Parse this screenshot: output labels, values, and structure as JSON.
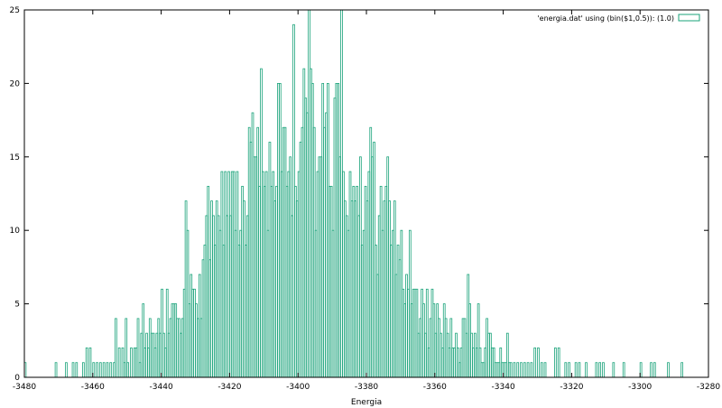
{
  "chart_data": {
    "type": "bar",
    "title": "",
    "xlabel": "Energia",
    "ylabel": "",
    "xlim": [
      -3480,
      -3280
    ],
    "ylim": [
      0,
      25
    ],
    "bin_width": 0.5,
    "grid": false,
    "legend_position": "top-right",
    "color": "#1aa37a",
    "x_ticks": [
      -3480,
      -3460,
      -3440,
      -3420,
      -3400,
      -3380,
      -3360,
      -3340,
      -3320,
      -3300,
      -3280
    ],
    "y_ticks": [
      0,
      5,
      10,
      15,
      20,
      25
    ],
    "series": [
      {
        "name": "'energia.dat' using (bin($1,0.5)): (1.0)",
        "bins": [
          [
            -3480,
            1
          ],
          [
            -3471,
            1
          ],
          [
            -3468,
            1
          ],
          [
            -3466,
            1
          ],
          [
            -3465,
            1
          ],
          [
            -3463,
            1
          ],
          [
            -3462,
            2
          ],
          [
            -3461,
            2
          ],
          [
            -3460,
            1
          ],
          [
            -3459,
            1
          ],
          [
            -3458,
            1
          ],
          [
            -3457,
            1
          ],
          [
            -3456,
            1
          ],
          [
            -3455,
            1
          ],
          [
            -3454,
            1
          ],
          [
            -3453.5,
            4
          ],
          [
            -3452.5,
            2
          ],
          [
            -3451.5,
            2
          ],
          [
            -3451,
            1
          ],
          [
            -3450.5,
            4
          ],
          [
            -3450,
            1
          ],
          [
            -3449,
            2
          ],
          [
            -3448,
            2
          ],
          [
            -3447.5,
            2
          ],
          [
            -3447,
            4
          ],
          [
            -3446.5,
            1
          ],
          [
            -3446,
            3
          ],
          [
            -3445.5,
            5
          ],
          [
            -3445,
            2
          ],
          [
            -3444.5,
            3
          ],
          [
            -3444,
            2
          ],
          [
            -3443.5,
            4
          ],
          [
            -3443,
            3
          ],
          [
            -3442.5,
            3
          ],
          [
            -3442,
            2
          ],
          [
            -3441.5,
            3
          ],
          [
            -3441,
            4
          ],
          [
            -3440.5,
            3
          ],
          [
            -3440,
            6
          ],
          [
            -3439.5,
            3
          ],
          [
            -3439,
            2
          ],
          [
            -3438.5,
            6
          ],
          [
            -3438,
            3
          ],
          [
            -3437.5,
            4
          ],
          [
            -3437,
            5
          ],
          [
            -3436.5,
            5
          ],
          [
            -3436,
            5
          ],
          [
            -3435.5,
            4
          ],
          [
            -3435,
            4
          ],
          [
            -3434.5,
            3
          ],
          [
            -3434,
            4
          ],
          [
            -3433.5,
            6
          ],
          [
            -3433,
            12
          ],
          [
            -3432.5,
            10
          ],
          [
            -3432,
            5
          ],
          [
            -3431.5,
            7
          ],
          [
            -3431,
            6
          ],
          [
            -3430.5,
            6
          ],
          [
            -3430,
            5
          ],
          [
            -3429.5,
            4
          ],
          [
            -3429,
            7
          ],
          [
            -3428.5,
            4
          ],
          [
            -3428,
            8
          ],
          [
            -3427.5,
            9
          ],
          [
            -3427,
            11
          ],
          [
            -3426.5,
            13
          ],
          [
            -3426,
            8
          ],
          [
            -3425.5,
            12
          ],
          [
            -3425,
            11
          ],
          [
            -3424.5,
            9
          ],
          [
            -3424,
            12
          ],
          [
            -3423.5,
            11
          ],
          [
            -3423,
            10
          ],
          [
            -3422.5,
            14
          ],
          [
            -3422,
            9
          ],
          [
            -3421.5,
            14
          ],
          [
            -3421,
            11
          ],
          [
            -3420.5,
            14
          ],
          [
            -3420,
            11
          ],
          [
            -3419.5,
            14
          ],
          [
            -3419,
            14
          ],
          [
            -3418.5,
            10
          ],
          [
            -3418,
            14
          ],
          [
            -3417.5,
            9
          ],
          [
            -3417,
            10
          ],
          [
            -3416.5,
            13
          ],
          [
            -3416,
            12
          ],
          [
            -3415.5,
            9
          ],
          [
            -3415,
            11
          ],
          [
            -3414.5,
            17
          ],
          [
            -3414,
            16
          ],
          [
            -3413.5,
            18
          ],
          [
            -3413,
            15
          ],
          [
            -3412.5,
            15
          ],
          [
            -3412,
            17
          ],
          [
            -3411.5,
            13
          ],
          [
            -3411,
            21
          ],
          [
            -3410.5,
            14
          ],
          [
            -3410,
            13
          ],
          [
            -3409.5,
            14
          ],
          [
            -3409,
            10
          ],
          [
            -3408.5,
            16
          ],
          [
            -3408,
            13
          ],
          [
            -3407.5,
            14
          ],
          [
            -3407,
            12
          ],
          [
            -3406.5,
            13
          ],
          [
            -3406,
            20
          ],
          [
            -3405.5,
            20
          ],
          [
            -3405,
            14
          ],
          [
            -3404.5,
            17
          ],
          [
            -3404,
            17
          ],
          [
            -3403.5,
            13
          ],
          [
            -3403,
            14
          ],
          [
            -3402.5,
            15
          ],
          [
            -3402,
            11
          ],
          [
            -3401.5,
            24
          ],
          [
            -3401,
            13
          ],
          [
            -3400.5,
            12
          ],
          [
            -3400,
            14
          ],
          [
            -3399.5,
            16
          ],
          [
            -3399,
            17
          ],
          [
            -3398.5,
            21
          ],
          [
            -3398,
            19
          ],
          [
            -3397.5,
            18
          ],
          [
            -3397,
            25
          ],
          [
            -3396.5,
            21
          ],
          [
            -3396,
            20
          ],
          [
            -3395.5,
            17
          ],
          [
            -3395,
            10
          ],
          [
            -3394.5,
            14
          ],
          [
            -3394,
            15
          ],
          [
            -3393.5,
            15
          ],
          [
            -3393,
            20
          ],
          [
            -3392.5,
            17
          ],
          [
            -3392,
            18
          ],
          [
            -3391.5,
            20
          ],
          [
            -3391,
            13
          ],
          [
            -3390.5,
            13
          ],
          [
            -3390,
            10
          ],
          [
            -3389.5,
            19
          ],
          [
            -3389,
            20
          ],
          [
            -3388.5,
            20
          ],
          [
            -3388,
            15
          ],
          [
            -3387.5,
            25
          ],
          [
            -3387,
            14
          ],
          [
            -3386.5,
            12
          ],
          [
            -3386,
            11
          ],
          [
            -3385.5,
            10
          ],
          [
            -3385,
            14
          ],
          [
            -3384.5,
            12
          ],
          [
            -3384,
            13
          ],
          [
            -3383.5,
            12
          ],
          [
            -3383,
            13
          ],
          [
            -3382.5,
            11
          ],
          [
            -3382,
            15
          ],
          [
            -3381.5,
            9
          ],
          [
            -3381,
            10
          ],
          [
            -3380.5,
            13
          ],
          [
            -3380,
            12
          ],
          [
            -3379.5,
            14
          ],
          [
            -3379,
            17
          ],
          [
            -3378.5,
            15
          ],
          [
            -3378,
            16
          ],
          [
            -3377.5,
            9
          ],
          [
            -3377,
            7
          ],
          [
            -3376.5,
            11
          ],
          [
            -3376,
            13
          ],
          [
            -3375.5,
            10
          ],
          [
            -3375,
            12
          ],
          [
            -3374.5,
            13
          ],
          [
            -3374,
            15
          ],
          [
            -3373.5,
            12
          ],
          [
            -3373,
            9
          ],
          [
            -3372.5,
            10
          ],
          [
            -3372,
            12
          ],
          [
            -3371.5,
            7
          ],
          [
            -3371,
            9
          ],
          [
            -3370.5,
            8
          ],
          [
            -3370,
            10
          ],
          [
            -3369.5,
            6
          ],
          [
            -3369,
            5
          ],
          [
            -3368.5,
            7
          ],
          [
            -3368,
            6
          ],
          [
            -3367.5,
            10
          ],
          [
            -3367,
            5
          ],
          [
            -3366.5,
            6
          ],
          [
            -3366,
            6
          ],
          [
            -3365.5,
            6
          ],
          [
            -3365,
            3
          ],
          [
            -3364.5,
            4
          ],
          [
            -3364,
            6
          ],
          [
            -3363.5,
            5
          ],
          [
            -3363,
            3
          ],
          [
            -3362.5,
            6
          ],
          [
            -3362,
            2
          ],
          [
            -3361.5,
            4
          ],
          [
            -3361,
            6
          ],
          [
            -3360.5,
            5
          ],
          [
            -3360,
            3
          ],
          [
            -3359.5,
            5
          ],
          [
            -3359,
            4
          ],
          [
            -3358.5,
            3
          ],
          [
            -3358,
            2
          ],
          [
            -3357.5,
            5
          ],
          [
            -3357,
            4
          ],
          [
            -3356.5,
            3
          ],
          [
            -3356,
            2
          ],
          [
            -3355.5,
            4
          ],
          [
            -3355,
            2
          ],
          [
            -3354.5,
            2
          ],
          [
            -3354,
            3
          ],
          [
            -3353.5,
            2
          ],
          [
            -3353,
            1
          ],
          [
            -3352.5,
            2
          ],
          [
            -3352,
            4
          ],
          [
            -3351.5,
            4
          ],
          [
            -3351,
            3
          ],
          [
            -3350.5,
            7
          ],
          [
            -3350,
            5
          ],
          [
            -3349.5,
            3
          ],
          [
            -3349,
            2
          ],
          [
            -3348.5,
            3
          ],
          [
            -3348,
            2
          ],
          [
            -3347.5,
            5
          ],
          [
            -3347,
            2
          ],
          [
            -3346.5,
            1
          ],
          [
            -3346,
            1
          ],
          [
            -3345.5,
            2
          ],
          [
            -3345,
            4
          ],
          [
            -3344.5,
            3
          ],
          [
            -3344,
            3
          ],
          [
            -3343.5,
            2
          ],
          [
            -3343,
            2
          ],
          [
            -3342.5,
            1
          ],
          [
            -3342,
            1
          ],
          [
            -3341.5,
            1
          ],
          [
            -3341,
            2
          ],
          [
            -3340.5,
            1
          ],
          [
            -3340,
            1
          ],
          [
            -3339.5,
            1
          ],
          [
            -3339,
            3
          ],
          [
            -3338.5,
            1
          ],
          [
            -3338,
            1
          ],
          [
            -3337,
            1
          ],
          [
            -3336,
            1
          ],
          [
            -3335,
            1
          ],
          [
            -3334,
            1
          ],
          [
            -3333,
            1
          ],
          [
            -3332,
            1
          ],
          [
            -3331,
            2
          ],
          [
            -3330,
            2
          ],
          [
            -3329,
            1
          ],
          [
            -3328,
            1
          ],
          [
            -3325,
            2
          ],
          [
            -3324,
            2
          ],
          [
            -3322,
            1
          ],
          [
            -3321,
            1
          ],
          [
            -3319,
            1
          ],
          [
            -3318,
            1
          ],
          [
            -3316,
            1
          ],
          [
            -3313,
            1
          ],
          [
            -3312,
            1
          ],
          [
            -3311,
            1
          ],
          [
            -3308,
            1
          ],
          [
            -3305,
            1
          ],
          [
            -3300,
            1
          ],
          [
            -3297,
            1
          ],
          [
            -3296,
            1
          ],
          [
            -3292,
            1
          ],
          [
            -3288,
            1
          ]
        ]
      }
    ]
  }
}
